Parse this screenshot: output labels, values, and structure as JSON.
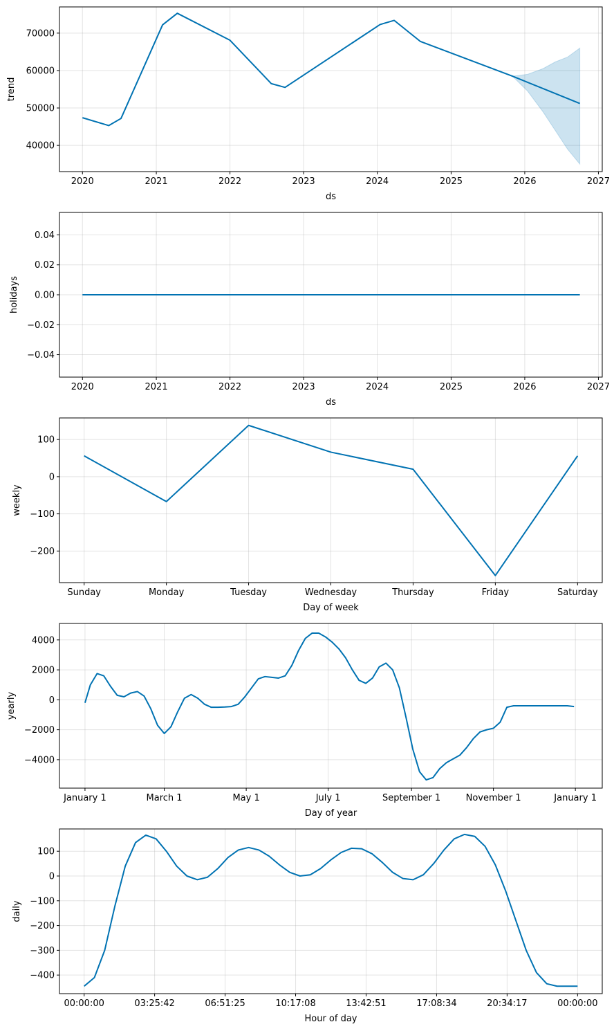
{
  "line_color": "#0072b2",
  "band_color": "#0072b2",
  "chart_data": [
    {
      "id": "trend",
      "type": "line",
      "xlabel": "ds",
      "ylabel": "trend",
      "x_type": "date",
      "xlim": [
        "2019-09-09",
        "2027-01-20"
      ],
      "ylim": [
        33000,
        77000
      ],
      "xticks": [
        "2020",
        "2021",
        "2022",
        "2023",
        "2024",
        "2025",
        "2026",
        "2027"
      ],
      "yticks": [
        40000,
        50000,
        60000,
        70000
      ],
      "ytick_labels": [
        "40000",
        "50000",
        "60000",
        "70000"
      ],
      "grid": true,
      "x": [
        "2020-01-01",
        "2020-05-10",
        "2020-07-10",
        "2021-02-01",
        "2021-04-15",
        "2022-01-01",
        "2022-07-25",
        "2022-10-01",
        "2024-01-15",
        "2024-03-25",
        "2024-08-01",
        "2025-11-01",
        "2026-10-01"
      ],
      "y": [
        47400,
        45300,
        47200,
        72200,
        75300,
        68100,
        56500,
        55500,
        72300,
        73400,
        67800,
        58500,
        51200
      ],
      "band": {
        "x": [
          "2025-11-01",
          "2026-01-15",
          "2026-04-01",
          "2026-06-01",
          "2026-08-01",
          "2026-10-01"
        ],
        "upper": [
          58500,
          59000,
          60500,
          62300,
          63600,
          66000
        ],
        "lower": [
          58500,
          54500,
          49000,
          44000,
          39000,
          35000
        ]
      }
    },
    {
      "id": "holidays",
      "type": "line",
      "xlabel": "ds",
      "ylabel": "holidays",
      "x_type": "date",
      "xlim": [
        "2019-09-09",
        "2027-01-20"
      ],
      "ylim": [
        -0.055,
        0.055
      ],
      "xticks": [
        "2020",
        "2021",
        "2022",
        "2023",
        "2024",
        "2025",
        "2026",
        "2027"
      ],
      "yticks": [
        -0.04,
        -0.02,
        0.0,
        0.02,
        0.04
      ],
      "ytick_labels": [
        "−0.04",
        "−0.02",
        "0.00",
        "0.02",
        "0.04"
      ],
      "grid": true,
      "x": [
        "2020-01-01",
        "2026-10-01"
      ],
      "y": [
        0,
        0
      ]
    },
    {
      "id": "weekly",
      "type": "line",
      "xlabel": "Day of week",
      "ylabel": "weekly",
      "x_type": "category",
      "xlim": [
        -0.3,
        6.3
      ],
      "ylim": [
        -285,
        158
      ],
      "categories": [
        "Sunday",
        "Monday",
        "Tuesday",
        "Wednesday",
        "Thursday",
        "Friday",
        "Saturday"
      ],
      "yticks": [
        -200,
        -100,
        0,
        100
      ],
      "ytick_labels": [
        "−200",
        "−100",
        "0",
        "100"
      ],
      "grid": true,
      "x": [
        0,
        1,
        2,
        3,
        4,
        5,
        6
      ],
      "y": [
        56,
        -67,
        138,
        66,
        20,
        -266,
        56
      ]
    },
    {
      "id": "yearly",
      "type": "line",
      "xlabel": "Day of year",
      "ylabel": "yearly",
      "x_type": "date",
      "xlim": [
        "2016-12-13",
        "2018-01-21"
      ],
      "ylim": [
        -5900,
        5100
      ],
      "xticks": [
        "January 1",
        "March 1",
        "May 1",
        "July 1",
        "September 1",
        "November 1",
        "January 1"
      ],
      "xtick_dates": [
        "2017-01-01",
        "2017-03-01",
        "2017-05-01",
        "2017-07-01",
        "2017-09-01",
        "2017-11-01",
        "2018-01-01"
      ],
      "yticks": [
        -4000,
        -2000,
        0,
        2000,
        4000
      ],
      "ytick_labels": [
        "−4000",
        "−2000",
        "0",
        "2000",
        "4000"
      ],
      "grid": true,
      "x": [
        "2017-01-01",
        "2017-01-05",
        "2017-01-10",
        "2017-01-15",
        "2017-01-20",
        "2017-01-25",
        "2017-01-30",
        "2017-02-04",
        "2017-02-09",
        "2017-02-14",
        "2017-02-19",
        "2017-02-24",
        "2017-03-01",
        "2017-03-06",
        "2017-03-11",
        "2017-03-16",
        "2017-03-21",
        "2017-03-26",
        "2017-03-31",
        "2017-04-05",
        "2017-04-10",
        "2017-04-15",
        "2017-04-20",
        "2017-04-25",
        "2017-04-30",
        "2017-05-05",
        "2017-05-10",
        "2017-05-15",
        "2017-05-20",
        "2017-05-25",
        "2017-05-30",
        "2017-06-04",
        "2017-06-09",
        "2017-06-14",
        "2017-06-19",
        "2017-06-24",
        "2017-06-29",
        "2017-07-04",
        "2017-07-09",
        "2017-07-14",
        "2017-07-19",
        "2017-07-24",
        "2017-07-29",
        "2017-08-03",
        "2017-08-08",
        "2017-08-13",
        "2017-08-18",
        "2017-08-23",
        "2017-08-28",
        "2017-09-02",
        "2017-09-07",
        "2017-09-12",
        "2017-09-17",
        "2017-09-22",
        "2017-09-27",
        "2017-10-02",
        "2017-10-07",
        "2017-10-12",
        "2017-10-17",
        "2017-10-22",
        "2017-10-27",
        "2017-11-01",
        "2017-11-06",
        "2017-11-11",
        "2017-11-16",
        "2017-11-21",
        "2017-11-26",
        "2017-12-01",
        "2017-12-06",
        "2017-12-11",
        "2017-12-16",
        "2017-12-21",
        "2017-12-26",
        "2017-12-31"
      ],
      "y": [
        -200,
        1000,
        1750,
        1600,
        900,
        300,
        200,
        450,
        550,
        250,
        -600,
        -1700,
        -2250,
        -1800,
        -800,
        100,
        350,
        100,
        -300,
        -500,
        -500,
        -480,
        -450,
        -300,
        200,
        800,
        1400,
        1550,
        1500,
        1450,
        1600,
        2300,
        3300,
        4100,
        4450,
        4450,
        4200,
        3850,
        3400,
        2800,
        2000,
        1300,
        1100,
        1450,
        2200,
        2450,
        2000,
        800,
        -1200,
        -3300,
        -4800,
        -5350,
        -5200,
        -4600,
        -4200,
        -3950,
        -3700,
        -3200,
        -2600,
        -2150,
        -2000,
        -1900,
        -1500,
        -500,
        -400,
        -400,
        -400,
        -400,
        -400,
        -400,
        -400,
        -400,
        -400,
        -450
      ],
      "y_note": ""
    },
    {
      "id": "daily",
      "type": "line",
      "xlabel": "Hour of day",
      "ylabel": "daily",
      "x_type": "time",
      "xlim": [
        -1.2,
        25.2
      ],
      "ylim": [
        -475,
        190
      ],
      "xticks": [
        "00:00:00",
        "03:25:42",
        "06:51:25",
        "10:17:08",
        "13:42:51",
        "17:08:34",
        "20:34:17",
        "00:00:00"
      ],
      "xtick_hours": [
        0,
        3.4286,
        6.8571,
        10.2857,
        13.7143,
        17.1429,
        20.5714,
        24
      ],
      "yticks": [
        -400,
        -300,
        -200,
        -100,
        0,
        100
      ],
      "ytick_labels": [
        "−400",
        "−300",
        "−200",
        "−100",
        "0",
        "100"
      ],
      "grid": true,
      "x": [
        0,
        0.5,
        1,
        1.5,
        2,
        2.5,
        3,
        3.5,
        4,
        4.5,
        5,
        5.5,
        6,
        6.5,
        7,
        7.5,
        8,
        8.5,
        9,
        9.5,
        10,
        10.5,
        11,
        11.5,
        12,
        12.5,
        13,
        13.5,
        14,
        14.5,
        15,
        15.5,
        16,
        16.5,
        17,
        17.5,
        18,
        18.5,
        19,
        19.5,
        20,
        20.5,
        21,
        21.5,
        22,
        22.5,
        23,
        23.5,
        24
      ],
      "y": [
        -445,
        -410,
        -300,
        -120,
        40,
        135,
        165,
        150,
        100,
        40,
        0,
        -15,
        -5,
        30,
        75,
        105,
        115,
        105,
        80,
        45,
        15,
        0,
        5,
        30,
        65,
        95,
        112,
        110,
        90,
        55,
        15,
        -10,
        -15,
        5,
        50,
        105,
        150,
        168,
        160,
        120,
        45,
        -60,
        -180,
        -300,
        -390,
        -435,
        -445,
        -445,
        -445
      ]
    }
  ]
}
